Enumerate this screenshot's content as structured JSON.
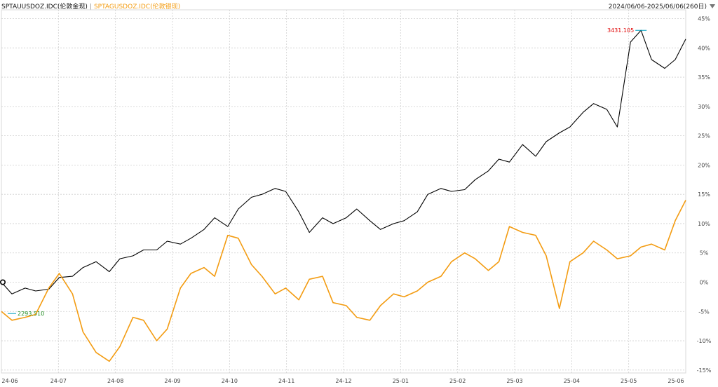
{
  "header": {
    "series1_title": "SPTAUUSDOZ.IDC(伦敦金现)",
    "separator": "|",
    "series2_title": "SPTAGUSDOZ.IDC(伦敦银现)",
    "range": "2024/06/06-2025/06/06(260日)"
  },
  "colors": {
    "gold": "#000000",
    "silver": "#f39c12",
    "grid": "#cfcfcf",
    "max_label": "#e00000",
    "min_label": "#1a8a1a"
  },
  "chart_data": {
    "type": "line",
    "title": "",
    "xlabel": "",
    "ylabel": "",
    "x_tick_labels": [
      "24-06",
      "24-07",
      "24-08",
      "24-09",
      "24-10",
      "24-11",
      "24-12",
      "25-01",
      "25-02",
      "25-03",
      "25-04",
      "25-05",
      "25-06"
    ],
    "y_tick_labels": [
      "45%",
      "40%",
      "35%",
      "30%",
      "25%",
      "20%",
      "15%",
      "10%",
      "5%",
      "0%",
      "-5%",
      "-10%",
      "-15%"
    ],
    "y_ticks": [
      45,
      40,
      35,
      30,
      25,
      20,
      15,
      10,
      5,
      0,
      -5,
      -10,
      -15
    ],
    "ylim": [
      -15.5,
      46.5
    ],
    "xlim": [
      0,
      260
    ],
    "grid": true,
    "legend": "top-left",
    "annotations": {
      "max_value": "3431.105",
      "min_value": "2293.510"
    },
    "series": [
      {
        "name": "SPTAUUSDOZ.IDC(伦敦金现)",
        "x": [
          0,
          4,
          9,
          13,
          18,
          22,
          27,
          31,
          36,
          41,
          45,
          50,
          54,
          59,
          63,
          68,
          72,
          77,
          81,
          86,
          90,
          95,
          99,
          104,
          108,
          113,
          117,
          122,
          126,
          131,
          135,
          140,
          144,
          149,
          153,
          158,
          162,
          167,
          171,
          176,
          180,
          185,
          189,
          193,
          198,
          203,
          207,
          212,
          216,
          221,
          225,
          230,
          234,
          239,
          243,
          247,
          252,
          256,
          260
        ],
        "values": [
          0.0,
          -2.0,
          -1.0,
          -1.5,
          -1.2,
          0.8,
          1.0,
          2.5,
          3.5,
          1.8,
          4.0,
          4.5,
          5.5,
          5.5,
          7.0,
          6.5,
          7.5,
          9.0,
          11.0,
          9.5,
          12.5,
          14.5,
          15.0,
          16.0,
          15.5,
          12.0,
          8.5,
          11.0,
          10.0,
          11.0,
          12.5,
          10.5,
          9.0,
          10.0,
          10.5,
          12.0,
          15.0,
          16.0,
          15.5,
          15.8,
          17.5,
          19.0,
          21.0,
          20.5,
          23.5,
          21.5,
          24.0,
          25.5,
          26.5,
          29.0,
          30.5,
          29.5,
          26.5,
          41.0,
          43.0,
          38.0,
          36.5,
          38.0,
          41.5
        ]
      },
      {
        "name": "SPTAGUSDOZ.IDC(伦敦银现)",
        "x": [
          0,
          4,
          9,
          13,
          18,
          22,
          27,
          31,
          36,
          41,
          45,
          50,
          54,
          59,
          63,
          68,
          72,
          77,
          81,
          86,
          90,
          95,
          99,
          104,
          108,
          113,
          117,
          122,
          126,
          131,
          135,
          140,
          144,
          149,
          153,
          158,
          162,
          167,
          171,
          176,
          180,
          185,
          189,
          193,
          198,
          203,
          207,
          212,
          216,
          221,
          225,
          230,
          234,
          239,
          243,
          247,
          252,
          256,
          260
        ],
        "values": [
          -5.0,
          -6.5,
          -6.0,
          -5.5,
          -1.0,
          1.5,
          -2.0,
          -8.5,
          -12.0,
          -13.5,
          -11.0,
          -6.0,
          -6.5,
          -10.0,
          -8.0,
          -1.0,
          1.5,
          2.5,
          1.0,
          8.0,
          7.5,
          3.0,
          1.0,
          -2.0,
          -1.0,
          -3.0,
          0.5,
          1.0,
          -3.5,
          -4.0,
          -6.0,
          -6.5,
          -4.0,
          -2.0,
          -2.5,
          -1.5,
          0.0,
          1.0,
          3.5,
          5.0,
          4.0,
          2.0,
          3.5,
          9.5,
          8.5,
          8.0,
          4.5,
          -4.5,
          3.5,
          5.0,
          7.0,
          5.5,
          4.0,
          4.5,
          6.0,
          6.5,
          5.5,
          10.5,
          14.0
        ]
      }
    ]
  }
}
